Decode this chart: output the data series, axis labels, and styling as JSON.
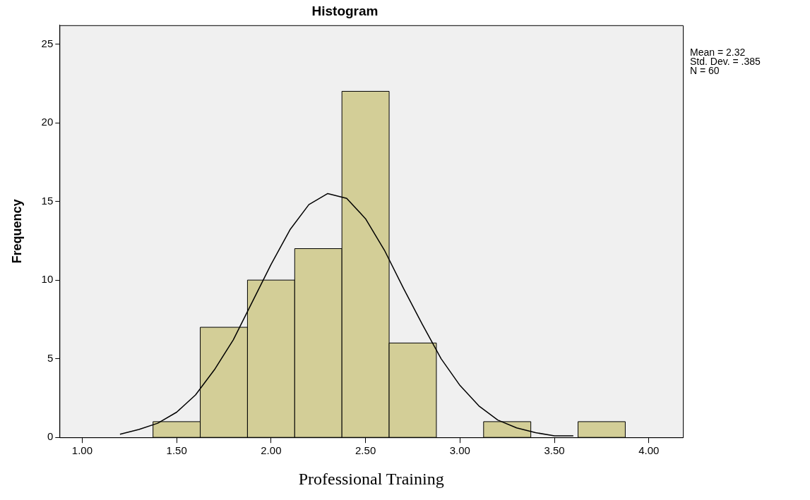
{
  "chart_data": {
    "type": "histogram",
    "title": "Histogram",
    "xlabel": "Professional Training",
    "ylabel": "Frequency",
    "bins": [
      1.375,
      1.625,
      1.875,
      2.125,
      2.375,
      2.625,
      2.875,
      3.125,
      3.375,
      3.625,
      3.875
    ],
    "values": [
      1,
      7,
      10,
      12,
      22,
      6,
      0,
      1,
      0,
      1
    ],
    "color": "#d3ce97",
    "series": [
      {
        "type": "line",
        "color": "#000000",
        "x": [
          1.2,
          1.3,
          1.4,
          1.5,
          1.6,
          1.7,
          1.8,
          1.9,
          2.0,
          2.1,
          2.2,
          2.3,
          2.4,
          2.5,
          2.6,
          2.7,
          2.8,
          2.9,
          3.0,
          3.1,
          3.2,
          3.3,
          3.4,
          3.5,
          3.6
        ],
        "values": [
          0.2,
          0.5,
          0.9,
          1.6,
          2.7,
          4.3,
          6.2,
          8.6,
          11.0,
          13.2,
          14.8,
          15.5,
          15.2,
          13.9,
          11.9,
          9.5,
          7.2,
          5.0,
          3.3,
          2.0,
          1.1,
          0.6,
          0.3,
          0.1,
          0.1
        ]
      }
    ],
    "marker": "none",
    "line_style": "solid",
    "grid": false,
    "legend": false,
    "xlim": [
      0.88,
      4.18
    ],
    "xticks": [
      {
        "value": 1,
        "label": "1.00"
      },
      {
        "value": 1.5,
        "label": "1.50"
      },
      {
        "value": 2,
        "label": "2.00"
      },
      {
        "value": 2.5,
        "label": "2.50"
      },
      {
        "value": 3,
        "label": "3.00"
      },
      {
        "value": 3.5,
        "label": "3.50"
      },
      {
        "value": 4,
        "label": "4.00"
      }
    ],
    "ylim": [
      0,
      26.2
    ],
    "yticks": [
      0,
      5,
      10,
      15,
      20,
      25
    ],
    "annotations": [
      "Mean = 2.32",
      "Std. Dev. = .385",
      "N = 60"
    ]
  }
}
